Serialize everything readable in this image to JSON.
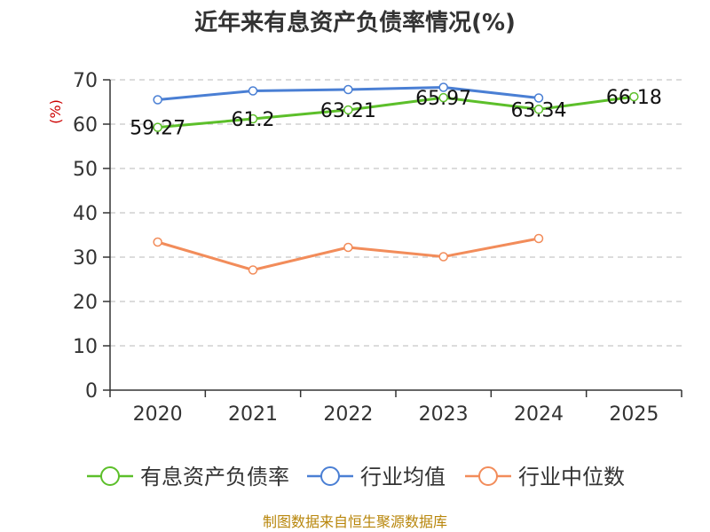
{
  "title": "近年来有息资产负债率情况(%)",
  "source": "制图数据来自恒生聚源数据库",
  "chart_data": {
    "type": "line",
    "title": "近年来有息资产负债率情况(%)",
    "ylabel": "(%)",
    "xlabel": "",
    "categories": [
      "2020",
      "2021",
      "2022",
      "2023",
      "2024",
      "2025"
    ],
    "ylim": [
      0,
      70
    ],
    "yticks": [
      0,
      10,
      20,
      30,
      40,
      50,
      60,
      70
    ],
    "grid": true,
    "legend_position": "bottom",
    "series": [
      {
        "name": "有息资产负债率",
        "color": "#5cbf2a",
        "values": [
          59.27,
          61.2,
          63.21,
          65.97,
          63.34,
          66.18
        ],
        "labels": [
          "59.27",
          "61.2",
          "63.21",
          "65.97",
          "63.34",
          "66.18"
        ]
      },
      {
        "name": "行业均值",
        "color": "#4a7fd4",
        "values": [
          65.5,
          67.5,
          67.8,
          68.3,
          65.9,
          null
        ]
      },
      {
        "name": "行业中位数",
        "color": "#f28c5a",
        "values": [
          33.4,
          27.1,
          32.2,
          30.1,
          34.2,
          null
        ]
      }
    ]
  }
}
